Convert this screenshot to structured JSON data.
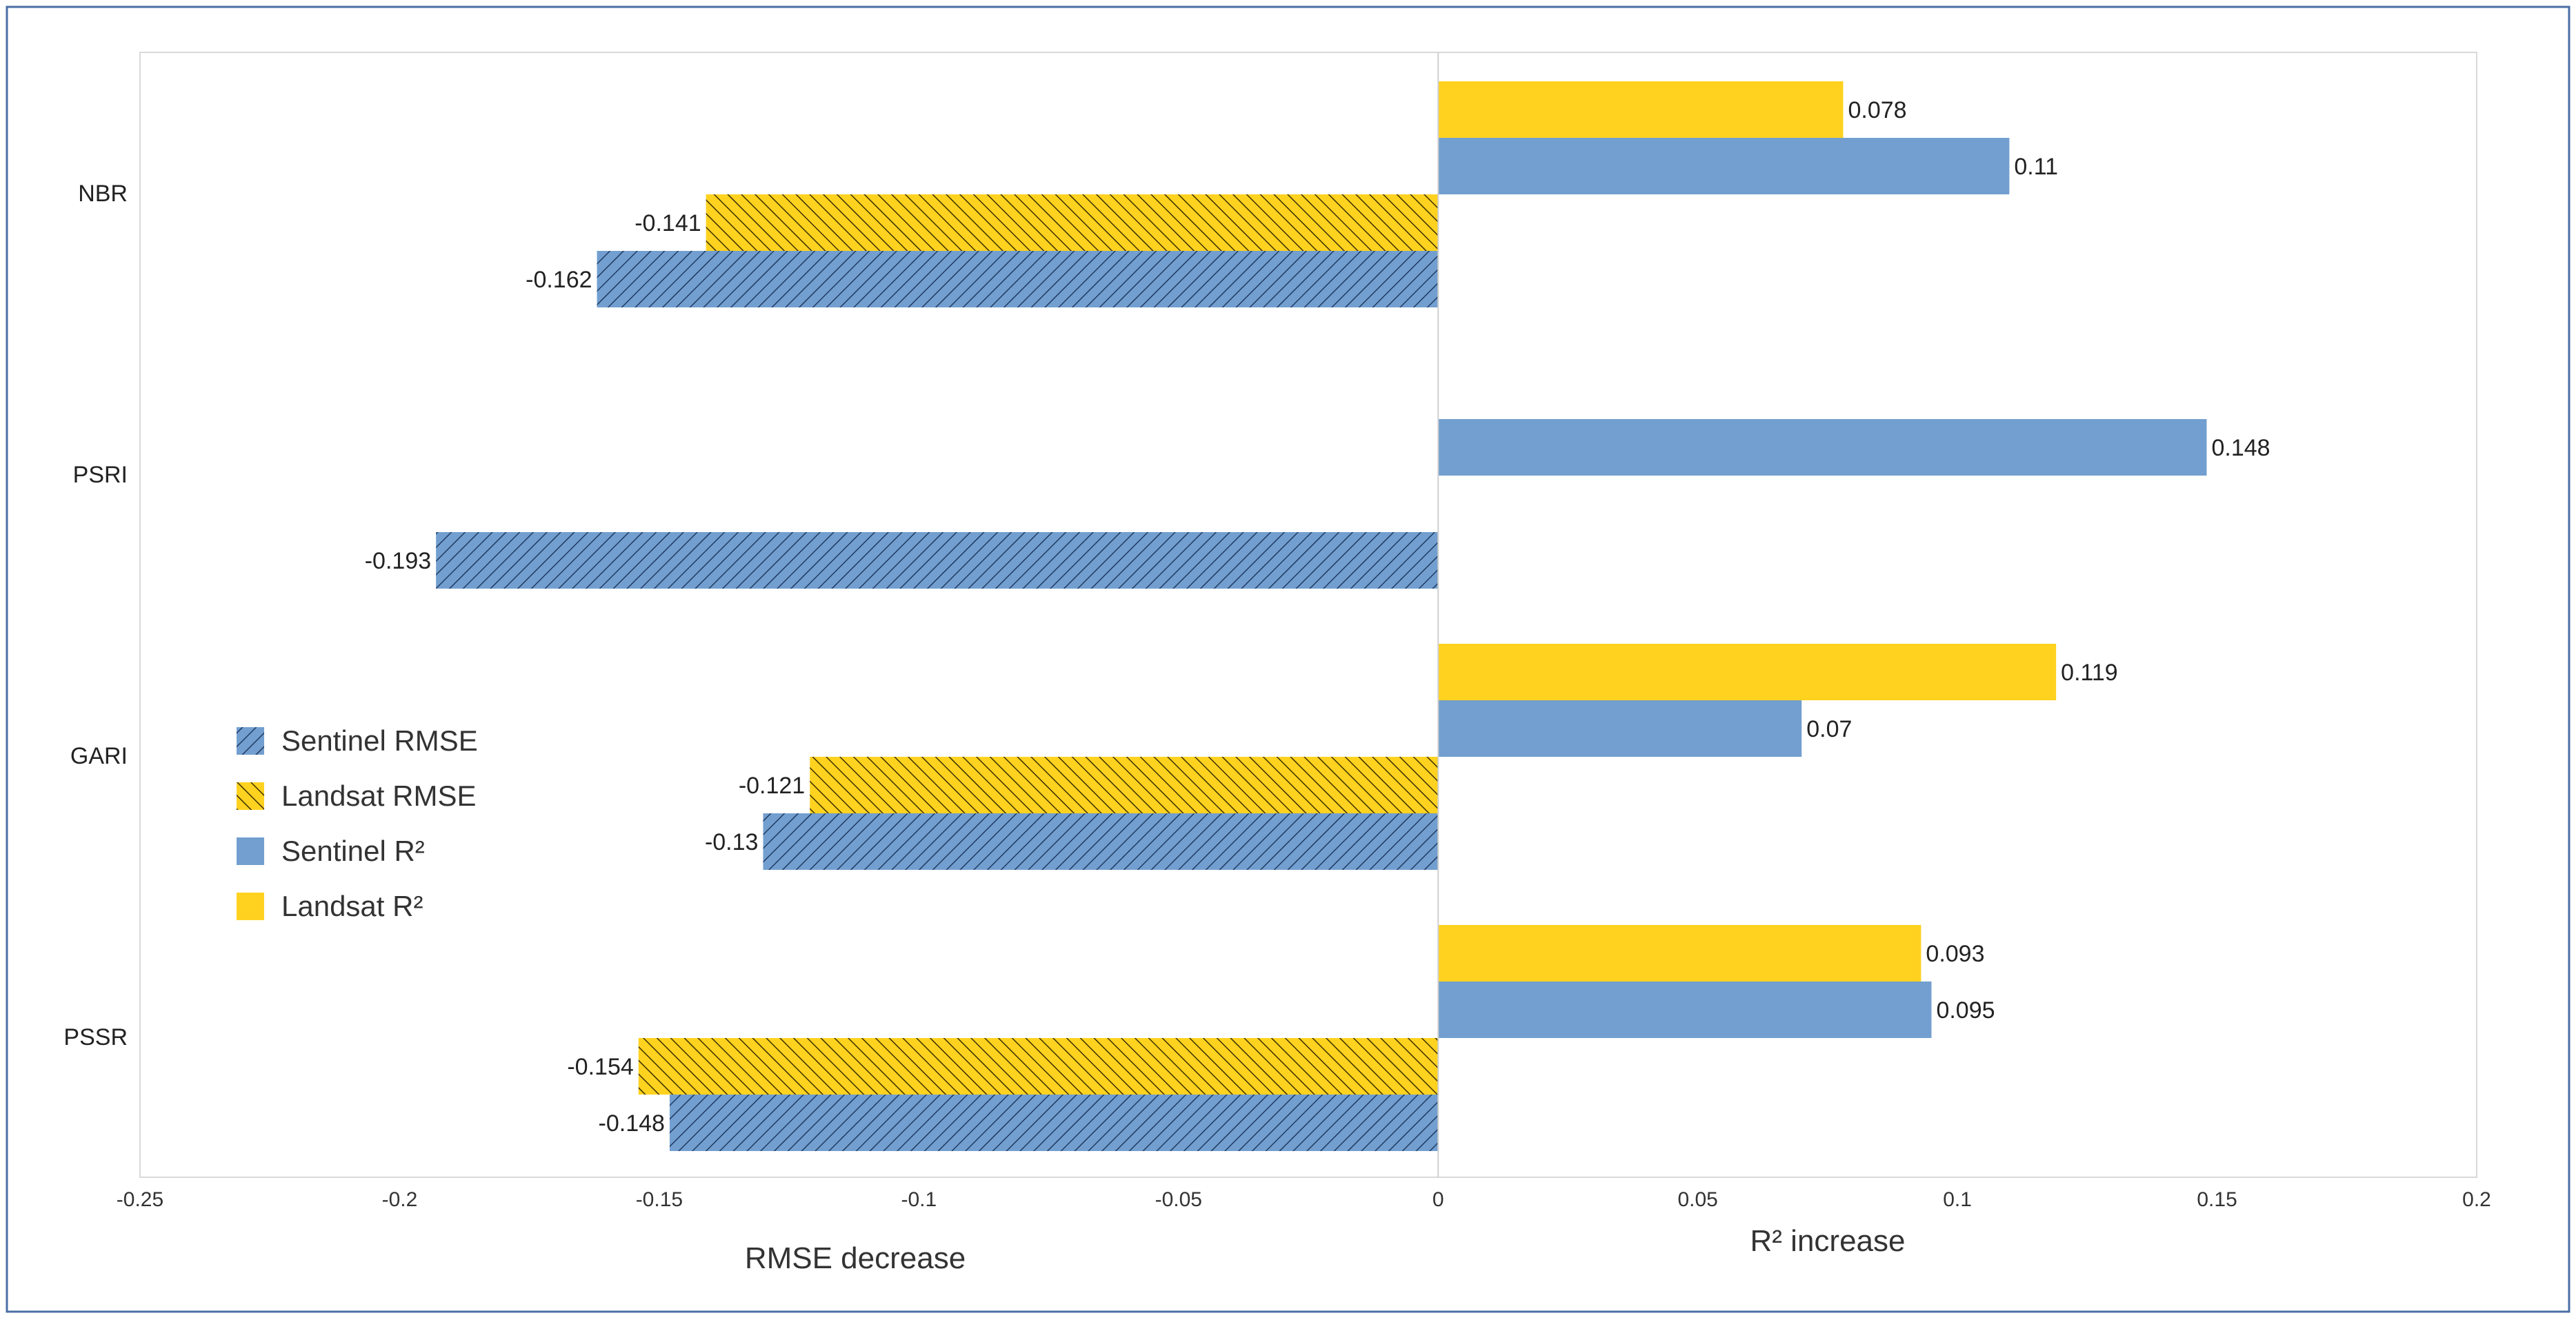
{
  "chart_data": {
    "type": "bar",
    "orientation": "horizontal",
    "categories": [
      "NBR",
      "PSRI",
      "GARI",
      "PSSR"
    ],
    "series": [
      {
        "name": "Landsat R²",
        "values": [
          0.078,
          null,
          0.119,
          0.093
        ],
        "color": "#ffd21f",
        "hatch": false
      },
      {
        "name": "Sentinel R²",
        "values": [
          0.11,
          0.148,
          0.07,
          0.095
        ],
        "color": "#729fcf",
        "hatch": false
      },
      {
        "name": "Landsat RMSE",
        "values": [
          -0.141,
          null,
          -0.121,
          -0.154
        ],
        "color": "#ffd21f",
        "hatch": true
      },
      {
        "name": "Sentinel RMSE",
        "values": [
          -0.162,
          -0.193,
          -0.13,
          -0.148
        ],
        "color": "#729fcf",
        "hatch": true
      }
    ],
    "data_labels": {
      "Landsat R²": [
        "0.078",
        "",
        "0.119",
        "0.093"
      ],
      "Sentinel R²": [
        "0.11",
        "0.148",
        "0.07",
        "0.095"
      ],
      "Landsat RMSE": [
        "-0.141",
        "",
        "-0.121",
        "-0.154"
      ],
      "Sentinel RMSE": [
        "-0.162",
        "-0.193",
        "-0.13",
        "-0.148"
      ]
    },
    "xlim": [
      -0.25,
      0.2
    ],
    "x_ticks": [
      -0.25,
      -0.2,
      -0.15,
      -0.1,
      -0.05,
      0,
      0.05,
      0.1,
      0.15,
      0.2
    ],
    "x_tick_labels": [
      "-0.25",
      "-0.2",
      "-0.15",
      "-0.1",
      "-0.05",
      "0",
      "0.05",
      "0.1",
      "0.15",
      "0.2"
    ],
    "xlabel_left": "RMSE decrease",
    "xlabel_right": "R² increase",
    "title": "",
    "grid": false,
    "legend": {
      "placement": "left-middle",
      "entries": [
        "Sentinel RMSE",
        "Landsat RMSE",
        "Sentinel R²",
        "Landsat R²"
      ]
    }
  }
}
